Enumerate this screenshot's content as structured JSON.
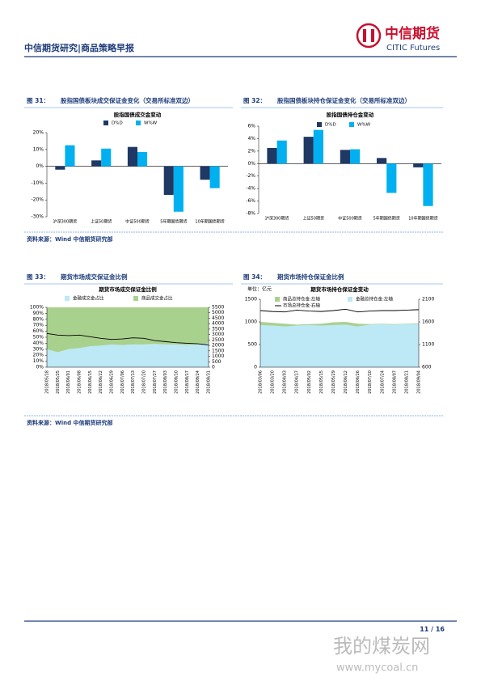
{
  "header": {
    "title": "中信期货研究|商品策略早报",
    "logo_cn": "中信期货",
    "logo_en": "CITIC Futures"
  },
  "chart_data": [
    {
      "type": "bar",
      "figure_label": "图 31：",
      "caption": "股指国债板块成交保证金变化（交易所标准双边）",
      "title": "股指国债成交金变动",
      "categories": [
        "沪深300期货",
        "上证50期货",
        "中证500期货",
        "5年期国债期货",
        "10年期国债期货"
      ],
      "series": [
        {
          "name": "D%D",
          "color": "#1f3864",
          "values": [
            -2,
            3.5,
            11.5,
            -17,
            -8
          ]
        },
        {
          "name": "W%W",
          "color": "#00b0f0",
          "values": [
            12.5,
            10.5,
            8.5,
            -27,
            -13
          ]
        }
      ],
      "ylim": [
        -30,
        20
      ],
      "yticks": [
        {
          "value": -30,
          "label": "-30%"
        },
        {
          "value": -20,
          "label": "-20%"
        },
        {
          "value": -10,
          "label": "-10%"
        },
        {
          "value": 0,
          "label": "0%"
        },
        {
          "value": 10,
          "label": "10%"
        },
        {
          "value": 20,
          "label": "20%"
        }
      ]
    },
    {
      "type": "bar",
      "figure_label": "图 32：",
      "caption": "股指国债板块持仓保证金变化（交易所标准双边）",
      "title": "股指国债持仓金变动",
      "categories": [
        "沪深300期货",
        "上证50期货",
        "中证500期货",
        "5年期国债期货",
        "10年期国债期货"
      ],
      "series": [
        {
          "name": "D%D",
          "color": "#1f3864",
          "values": [
            2.5,
            4.3,
            2.2,
            0.9,
            -0.6
          ]
        },
        {
          "name": "W%W",
          "color": "#00b0f0",
          "values": [
            3.7,
            5.4,
            2.3,
            -4.7,
            -6.8
          ]
        }
      ],
      "ylim": [
        -8,
        6
      ],
      "yticks": [
        {
          "value": -8,
          "label": "-8%"
        },
        {
          "value": -6,
          "label": "-6%"
        },
        {
          "value": -4,
          "label": "-4%"
        },
        {
          "value": -2,
          "label": "-2%"
        },
        {
          "value": 0,
          "label": "0%"
        },
        {
          "value": 2,
          "label": "2%"
        },
        {
          "value": 4,
          "label": "4%"
        },
        {
          "value": 6,
          "label": "6%"
        }
      ]
    },
    {
      "type": "area",
      "stacked": true,
      "figure_label": "图 33：",
      "caption": "期货市场成交保证金比例",
      "title": "期货市场成交保证金比例",
      "categories": [
        "2018/05/18",
        "2018/05/25",
        "2018/06/01",
        "2018/06/08",
        "2018/06/15",
        "2018/06/22",
        "2018/06/29",
        "2018/07/06",
        "2018/07/13",
        "2018/07/20",
        "2018/07/27",
        "2018/08/03",
        "2018/08/10",
        "2018/08/17",
        "2018/08/24",
        "2018/08/31"
      ],
      "series": [
        {
          "name": "金融成交金占比",
          "color": "#bde8f6",
          "values": [
            30,
            25,
            30,
            32,
            35,
            36,
            38,
            37,
            38,
            38,
            39,
            38,
            38,
            37,
            38,
            40
          ]
        },
        {
          "name": "商品成交金占比",
          "color": "#a9d18e",
          "values": [
            70,
            75,
            70,
            68,
            65,
            64,
            62,
            63,
            62,
            62,
            61,
            62,
            62,
            63,
            62,
            60
          ]
        },
        {
          "color": "#000000",
          "axis": "y2",
          "values": [
            3100,
            2950,
            2900,
            2950,
            2800,
            2650,
            2550,
            2600,
            2700,
            2650,
            2450,
            2350,
            2250,
            2200,
            2150,
            2050
          ]
        }
      ],
      "ylim": [
        0,
        100
      ],
      "yticks": [
        {
          "value": 0,
          "label": "0%"
        },
        {
          "value": 10,
          "label": "10%"
        },
        {
          "value": 20,
          "label": "20%"
        },
        {
          "value": 30,
          "label": "30%"
        },
        {
          "value": 40,
          "label": "40%"
        },
        {
          "value": 50,
          "label": "50%"
        },
        {
          "value": 60,
          "label": "60%"
        },
        {
          "value": 70,
          "label": "70%"
        },
        {
          "value": 80,
          "label": "80%"
        },
        {
          "value": 90,
          "label": "90%"
        },
        {
          "value": 100,
          "label": "100%"
        }
      ],
      "y2lim": [
        0,
        5500
      ],
      "y2ticks": [
        0,
        500,
        1000,
        1500,
        2000,
        2500,
        3000,
        3500,
        4000,
        4500,
        5000,
        5500
      ]
    },
    {
      "type": "area",
      "stacked": false,
      "figure_label": "图 34：",
      "caption": "期货市场持仓保证金比例",
      "title": "期货市场持仓保证金变动",
      "unit_label": "单位：亿元",
      "categories": [
        "2018/03/06",
        "2018/03/20",
        "2018/04/03",
        "2018/04/17",
        "2018/05/02",
        "2018/05/15",
        "2018/05/29",
        "2018/06/12",
        "2018/06/26",
        "2018/07/10",
        "2018/07/24",
        "2018/08/07",
        "2018/08/21",
        "2018/09/04"
      ],
      "series": [
        {
          "name": "商品总持仓金:左轴",
          "color": "#a9d18e",
          "values": [
            1000,
            980,
            960,
            940,
            950,
            960,
            990,
            1000,
            960,
            950,
            960,
            950,
            960,
            970
          ]
        },
        {
          "name": "金融总持仓金:左轴",
          "color": "#bde8f6",
          "values": [
            930,
            920,
            900,
            920,
            930,
            920,
            930,
            940,
            900,
            940,
            950,
            940,
            950,
            960
          ]
        },
        {
          "name": "市场总持仓金:右轴",
          "color": "#000000",
          "axis": "y2",
          "values": [
            1850,
            1830,
            1820,
            1860,
            1840,
            1830,
            1850,
            1880,
            1820,
            1840,
            1850,
            1850,
            1860,
            1870
          ]
        }
      ],
      "ylim": [
        0,
        1500
      ],
      "yticks": [
        0,
        500,
        1000,
        1500
      ],
      "y2lim": [
        600,
        2100
      ],
      "y2ticks": [
        600,
        1100,
        1600,
        2100
      ]
    }
  ],
  "sources": [
    "资料来源：Wind  中信期货研究部",
    "资料来源：Wind  中信期货研究部"
  ],
  "footer": {
    "page": "11 / 16"
  },
  "watermark": {
    "site": "我的煤炭网",
    "url": "www.mycoal.cn"
  }
}
